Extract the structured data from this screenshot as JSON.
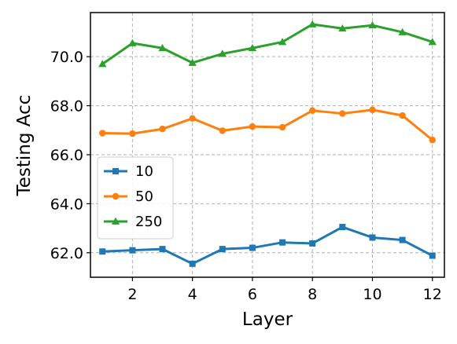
{
  "chart_data": {
    "type": "line",
    "xlabel": "Layer",
    "ylabel": "Testing Acc",
    "xlim": [
      0.6,
      12.4
    ],
    "ylim": [
      61.0,
      71.8
    ],
    "xticks": [
      2,
      4,
      6,
      8,
      10,
      12
    ],
    "xtick_labels": [
      "2",
      "4",
      "6",
      "8",
      "10",
      "12"
    ],
    "yticks": [
      62.0,
      64.0,
      66.0,
      68.0,
      70.0
    ],
    "ytick_labels": [
      "62.0",
      "64.0",
      "66.0",
      "68.0",
      "70.0"
    ],
    "grid": true,
    "legend_position": "center-left",
    "x": [
      1,
      2,
      3,
      4,
      5,
      6,
      7,
      8,
      9,
      10,
      11,
      12
    ],
    "series": [
      {
        "name": "10",
        "color": "#1f77b4",
        "marker": "square",
        "values": [
          62.05,
          62.1,
          62.15,
          61.55,
          62.15,
          62.2,
          62.42,
          62.38,
          63.05,
          62.62,
          62.52,
          61.88
        ]
      },
      {
        "name": "50",
        "color": "#ff7f0e",
        "marker": "circle",
        "values": [
          66.88,
          66.86,
          67.05,
          67.48,
          66.98,
          67.15,
          67.12,
          67.8,
          67.68,
          67.83,
          67.6,
          66.6
        ]
      },
      {
        "name": "250",
        "color": "#2ca02c",
        "marker": "triangle",
        "values": [
          69.7,
          70.55,
          70.35,
          69.75,
          70.12,
          70.35,
          70.6,
          71.32,
          71.15,
          71.28,
          71.0,
          70.6
        ]
      }
    ]
  }
}
